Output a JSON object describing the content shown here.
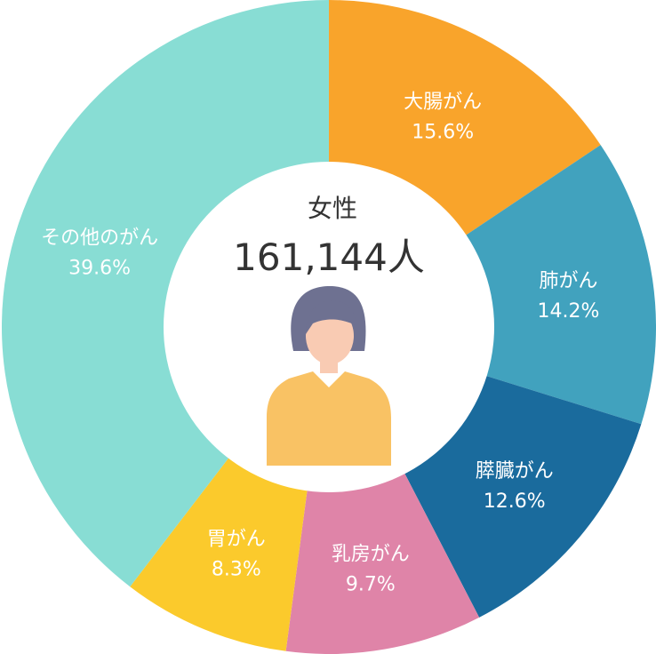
{
  "chart_data": {
    "type": "pie",
    "donut": true,
    "center": {
      "title": "女性",
      "total": "161,144人"
    },
    "slices": [
      {
        "name": "大腸がん",
        "value": 15.6,
        "label": "15.6%",
        "color": "#F9A42B"
      },
      {
        "name": "肺がん",
        "value": 14.2,
        "label": "14.2%",
        "color": "#41A2BE"
      },
      {
        "name": "膵臓がん",
        "value": 12.6,
        "label": "12.6%",
        "color": "#1A6B9D"
      },
      {
        "name": "乳房がん",
        "value": 9.7,
        "label": "9.7%",
        "color": "#DF84A8"
      },
      {
        "name": "胃がん",
        "value": 8.3,
        "label": "8.3%",
        "color": "#FBCA2C"
      },
      {
        "name": "その他のがん",
        "value": 39.6,
        "label": "39.6%",
        "color": "#88DDD4"
      }
    ]
  },
  "avatar": {
    "hair_color": "#6E7191",
    "skin_color": "#F9CBB3",
    "shirt_color": "#F9C264"
  }
}
